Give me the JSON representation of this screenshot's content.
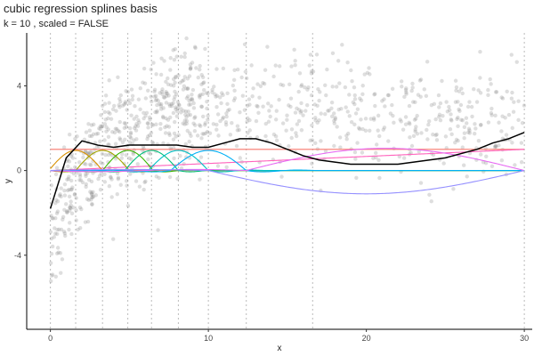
{
  "chart_data": {
    "type": "line",
    "title": "cubic regression splines basis",
    "subtitle": "k = 10 , scaled = FALSE",
    "xlabel": "x",
    "ylabel": "y",
    "xlim": [
      -1.5,
      30.5
    ],
    "ylim": [
      -7.5,
      6.5
    ],
    "xticks": [
      0,
      10,
      20,
      30
    ],
    "xtick_labels": [
      "0",
      "10",
      "20",
      "30"
    ],
    "yticks": [
      -4,
      0,
      4
    ],
    "ytick_labels": [
      "-4",
      "0",
      "4"
    ],
    "grid": false,
    "legend": "none",
    "knots": [
      0,
      1.6,
      3.3,
      4.9,
      6.4,
      8.1,
      10,
      12.4,
      16.6,
      30
    ],
    "scatter": {
      "n": 1000,
      "color": "#888888",
      "opacity": 0.28
    },
    "fitted": {
      "color": "#000000",
      "x": [
        0,
        1,
        2,
        3,
        4,
        5,
        6,
        7,
        8,
        9,
        10,
        11,
        12,
        13,
        14,
        15,
        16,
        17,
        18,
        19,
        20,
        21,
        22,
        23,
        24,
        25,
        26,
        27,
        28,
        29,
        30
      ],
      "y": [
        -1.8,
        0.6,
        1.4,
        1.2,
        1.1,
        1.2,
        1.2,
        1.2,
        1.2,
        1.1,
        1.1,
        1.3,
        1.5,
        1.5,
        1.3,
        1.0,
        0.7,
        0.5,
        0.4,
        0.3,
        0.3,
        0.3,
        0.3,
        0.4,
        0.5,
        0.6,
        0.8,
        1.0,
        1.3,
        1.5,
        1.8
      ]
    },
    "series_colors": [
      "#F8766D",
      "#D89000",
      "#A3A500",
      "#39B600",
      "#00BF7D",
      "#00BFC4",
      "#00B0F6",
      "#9590FF",
      "#E76BF3",
      "#FF62BC"
    ]
  }
}
